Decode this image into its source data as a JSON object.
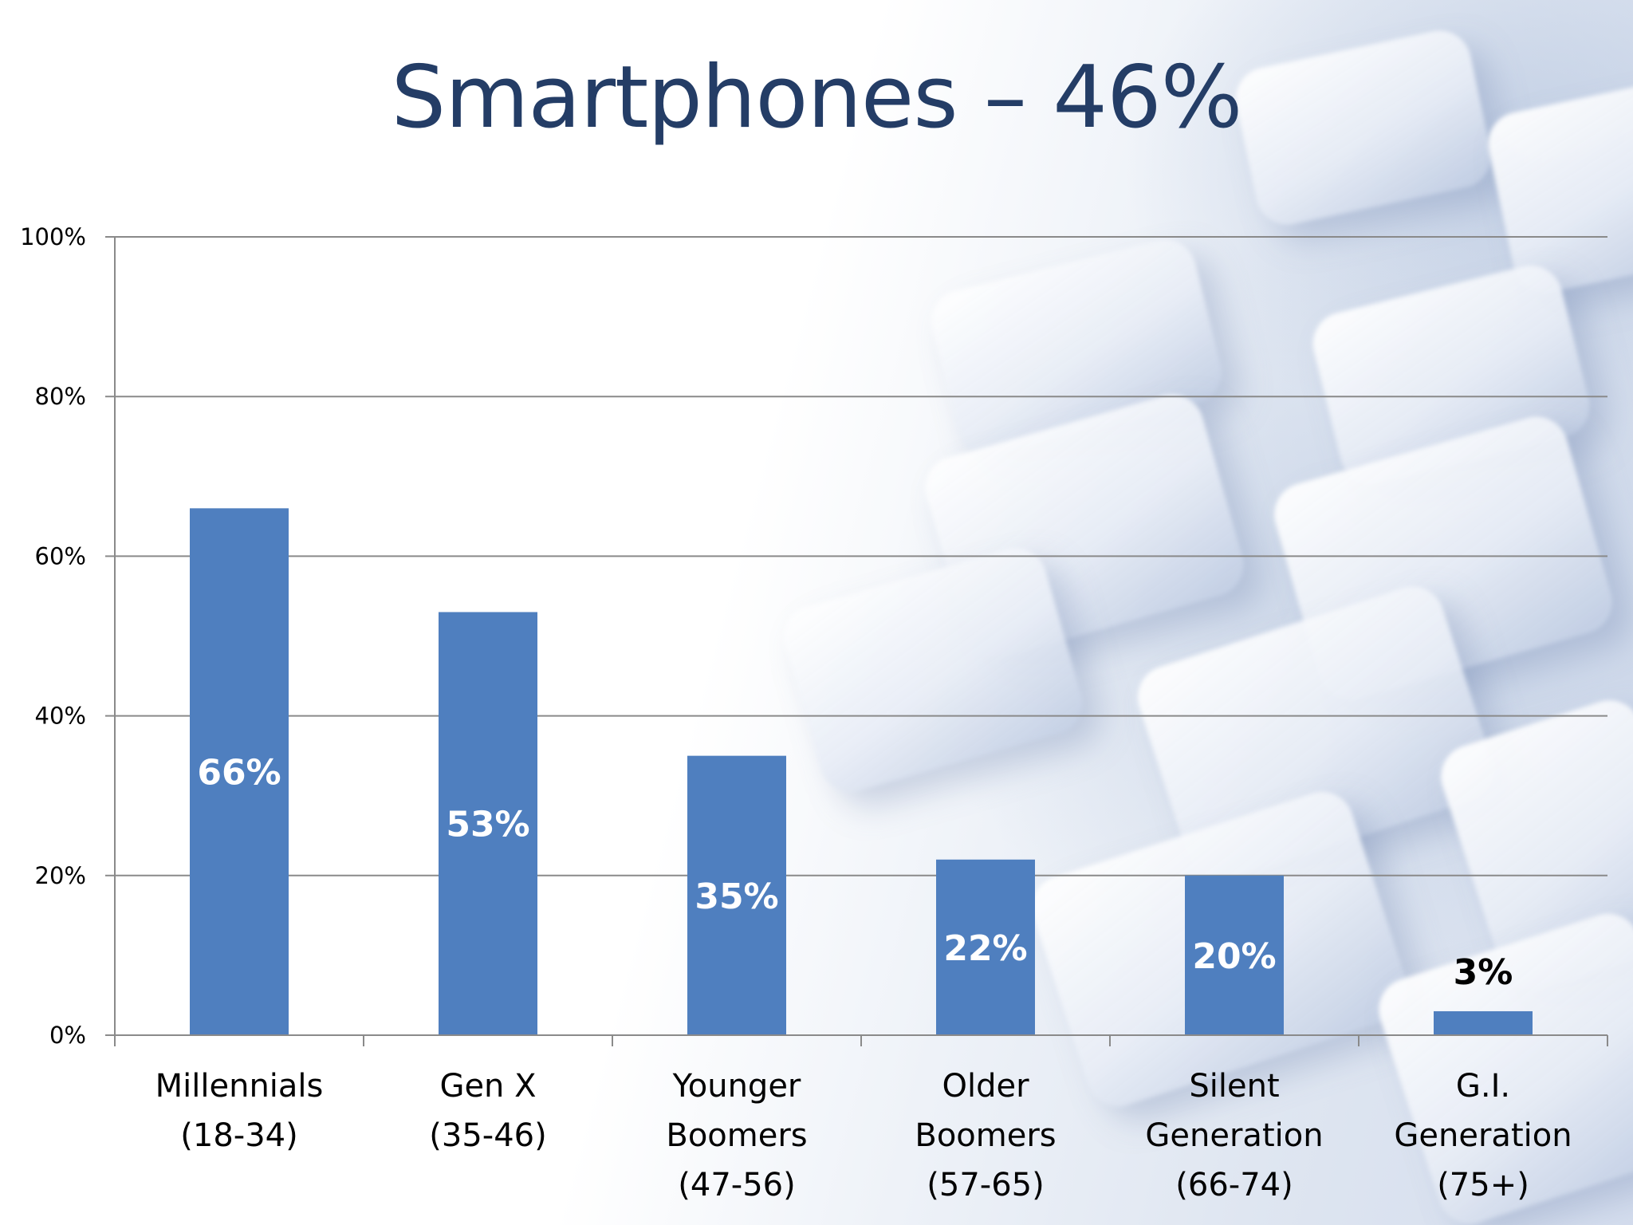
{
  "slide": {
    "title": "Smartphones – 46%"
  },
  "colors": {
    "bar": "#4f7fbf",
    "gridline": "#8a8a8a",
    "title": "#243d66",
    "data_label_inside": "#ffffff",
    "data_label_outside": "#000000"
  },
  "chart_data": {
    "type": "bar",
    "title": "Smartphones – 46%",
    "categories": [
      [
        "Millennials",
        "(18-34)"
      ],
      [
        "Gen X",
        "(35-46)"
      ],
      [
        "Younger",
        "Boomers",
        "(47-56)"
      ],
      [
        "Older",
        "Boomers",
        "(57-65)"
      ],
      [
        "Silent",
        "Generation",
        "(66-74)"
      ],
      [
        "G.I.",
        "Generation",
        "(75+)"
      ]
    ],
    "values": [
      66,
      53,
      35,
      22,
      20,
      3
    ],
    "data_labels": [
      "66%",
      "53%",
      "35%",
      "22%",
      "20%",
      "3%"
    ],
    "y_ticks": [
      "0%",
      "20%",
      "40%",
      "60%",
      "80%",
      "100%"
    ],
    "ylim": [
      0,
      100
    ],
    "xlabel": "",
    "ylabel": "",
    "grid": true,
    "legend": "none"
  }
}
